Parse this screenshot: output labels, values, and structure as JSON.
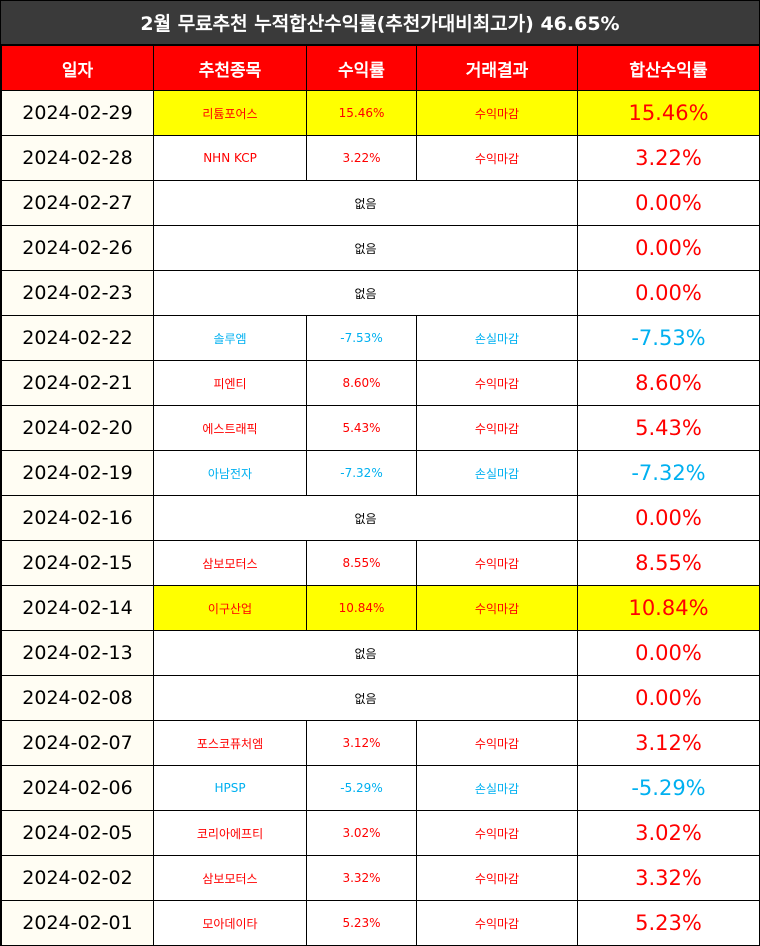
{
  "title": "2월 무료추천 누적합산수익률(추천가대비최고가) 46.65%",
  "headers": [
    "일자",
    "추천종목",
    "수익률",
    "거래결과",
    "합산수익률"
  ],
  "colors": {
    "header_bg": "#ff0000",
    "title_bg": "#3a3a3a",
    "profit": "#ff0000",
    "loss": "#00b0f0",
    "highlight": "#ffff00"
  },
  "rows": [
    {
      "date": "2024-02-29",
      "stock": "리튬포어스",
      "rate": "15.46%",
      "result": "수익마감",
      "total": "15.46%",
      "type": "profit",
      "highlight": true
    },
    {
      "date": "2024-02-28",
      "stock": "NHN KCP",
      "rate": "3.22%",
      "result": "수익마감",
      "total": "3.22%",
      "type": "profit",
      "highlight": false
    },
    {
      "date": "2024-02-27",
      "none": "없음",
      "total": "0.00%",
      "type": "none"
    },
    {
      "date": "2024-02-26",
      "none": "없음",
      "total": "0.00%",
      "type": "none"
    },
    {
      "date": "2024-02-23",
      "none": "없음",
      "total": "0.00%",
      "type": "none"
    },
    {
      "date": "2024-02-22",
      "stock": "솔루엠",
      "rate": "-7.53%",
      "result": "손실마감",
      "total": "-7.53%",
      "type": "loss",
      "highlight": false
    },
    {
      "date": "2024-02-21",
      "stock": "피엔티",
      "rate": "8.60%",
      "result": "수익마감",
      "total": "8.60%",
      "type": "profit",
      "highlight": false
    },
    {
      "date": "2024-02-20",
      "stock": "에스트래픽",
      "rate": "5.43%",
      "result": "수익마감",
      "total": "5.43%",
      "type": "profit",
      "highlight": false
    },
    {
      "date": "2024-02-19",
      "stock": "아남전자",
      "rate": "-7.32%",
      "result": "손실마감",
      "total": "-7.32%",
      "type": "loss",
      "highlight": false
    },
    {
      "date": "2024-02-16",
      "none": "없음",
      "total": "0.00%",
      "type": "none"
    },
    {
      "date": "2024-02-15",
      "stock": "삼보모터스",
      "rate": "8.55%",
      "result": "수익마감",
      "total": "8.55%",
      "type": "profit",
      "highlight": false
    },
    {
      "date": "2024-02-14",
      "stock": "이구산업",
      "rate": "10.84%",
      "result": "수익마감",
      "total": "10.84%",
      "type": "profit",
      "highlight": true
    },
    {
      "date": "2024-02-13",
      "none": "없음",
      "total": "0.00%",
      "type": "none"
    },
    {
      "date": "2024-02-08",
      "none": "없음",
      "total": "0.00%",
      "type": "none"
    },
    {
      "date": "2024-02-07",
      "stock": "포스코퓨처엠",
      "rate": "3.12%",
      "result": "수익마감",
      "total": "3.12%",
      "type": "profit",
      "highlight": false
    },
    {
      "date": "2024-02-06",
      "stock": "HPSP",
      "rate": "-5.29%",
      "result": "손실마감",
      "total": "-5.29%",
      "type": "loss",
      "highlight": false
    },
    {
      "date": "2024-02-05",
      "stock": "코리아에프티",
      "rate": "3.02%",
      "result": "수익마감",
      "total": "3.02%",
      "type": "profit",
      "highlight": false
    },
    {
      "date": "2024-02-02",
      "stock": "삼보모터스",
      "rate": "3.32%",
      "result": "수익마감",
      "total": "3.32%",
      "type": "profit",
      "highlight": false
    },
    {
      "date": "2024-02-01",
      "stock": "모아데이타",
      "rate": "5.23%",
      "result": "수익마감",
      "total": "5.23%",
      "type": "profit",
      "highlight": false
    }
  ]
}
